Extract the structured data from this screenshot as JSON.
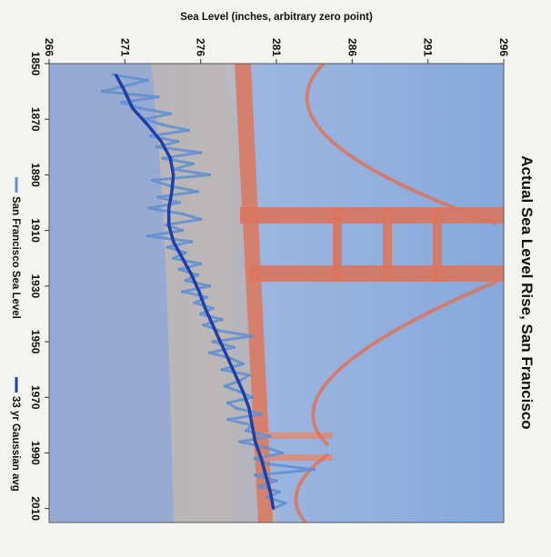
{
  "chart_data": {
    "type": "line",
    "title": "Actual Sea Level Rise, San Francisco",
    "xlabel": "",
    "ylabel": "Sea Level (inches, arbitrary zero point)",
    "xlim": [
      1850,
      2015
    ],
    "ylim": [
      266,
      296
    ],
    "x_ticks": [
      "1850",
      "1870",
      "1890",
      "1910",
      "1930",
      "1950",
      "1970",
      "1990",
      "2010"
    ],
    "y_ticks": [
      "266",
      "271",
      "276",
      "281",
      "286",
      "291",
      "296"
    ],
    "grid": false,
    "legend_position": "bottom",
    "background": "photo of the Golden Gate Bridge",
    "series": [
      {
        "name": "San Francisco Sea Level",
        "color": "#5f8fd0",
        "x": [
          1854,
          1856,
          1858,
          1860,
          1862,
          1864,
          1866,
          1868,
          1870,
          1872,
          1874,
          1876,
          1878,
          1880,
          1882,
          1884,
          1886,
          1888,
          1890,
          1892,
          1894,
          1896,
          1898,
          1900,
          1902,
          1904,
          1906,
          1908,
          1910,
          1912,
          1914,
          1916,
          1918,
          1920,
          1922,
          1924,
          1926,
          1928,
          1930,
          1932,
          1934,
          1936,
          1938,
          1940,
          1942,
          1944,
          1946,
          1948,
          1950,
          1952,
          1954,
          1956,
          1958,
          1960,
          1962,
          1964,
          1966,
          1968,
          1970,
          1972,
          1974,
          1976,
          1978,
          1980,
          1982,
          1984,
          1986,
          1988,
          1990,
          1992,
          1994,
          1996,
          1998,
          2000,
          2002,
          2004,
          2006,
          2008,
          2010
        ],
        "values": [
          270.2,
          272.5,
          271.0,
          269.5,
          273.2,
          270.8,
          272.0,
          274.0,
          272.3,
          273.5,
          275.2,
          272.7,
          274.5,
          273.1,
          276.0,
          273.5,
          275.5,
          274.2,
          276.6,
          272.8,
          274.0,
          275.8,
          273.2,
          274.6,
          272.6,
          274.8,
          276.0,
          273.7,
          274.8,
          272.5,
          275.4,
          273.8,
          275.0,
          274.2,
          276.0,
          274.6,
          275.8,
          275.0,
          276.6,
          274.8,
          276.4,
          275.6,
          276.8,
          276.0,
          277.4,
          276.2,
          277.2,
          279.4,
          276.8,
          278.2,
          276.6,
          278.0,
          278.8,
          277.4,
          279.2,
          278.6,
          277.6,
          278.6,
          279.4,
          277.8,
          278.4,
          280.0,
          277.8,
          279.4,
          279.0,
          280.6,
          278.6,
          280.3,
          281.4,
          279.6,
          280.5,
          283.5,
          279.6,
          281.0,
          279.8,
          281.2,
          280.4,
          281.6,
          280.8
        ]
      },
      {
        "name": "33 yr Gaussian avg",
        "color": "#1f3fa6",
        "x": [
          1854,
          1860,
          1866,
          1872,
          1878,
          1884,
          1890,
          1896,
          1902,
          1908,
          1914,
          1920,
          1926,
          1932,
          1938,
          1944,
          1950,
          1956,
          1962,
          1968,
          1974,
          1980,
          1986,
          1992,
          1998,
          2004,
          2010
        ],
        "values": [
          270.4,
          271.0,
          271.5,
          272.5,
          273.4,
          274.0,
          274.2,
          274.1,
          273.9,
          273.9,
          274.2,
          274.8,
          275.4,
          275.9,
          276.3,
          276.8,
          277.3,
          277.8,
          278.3,
          278.8,
          279.2,
          279.4,
          279.6,
          280.0,
          280.3,
          280.6,
          280.8
        ]
      }
    ]
  }
}
